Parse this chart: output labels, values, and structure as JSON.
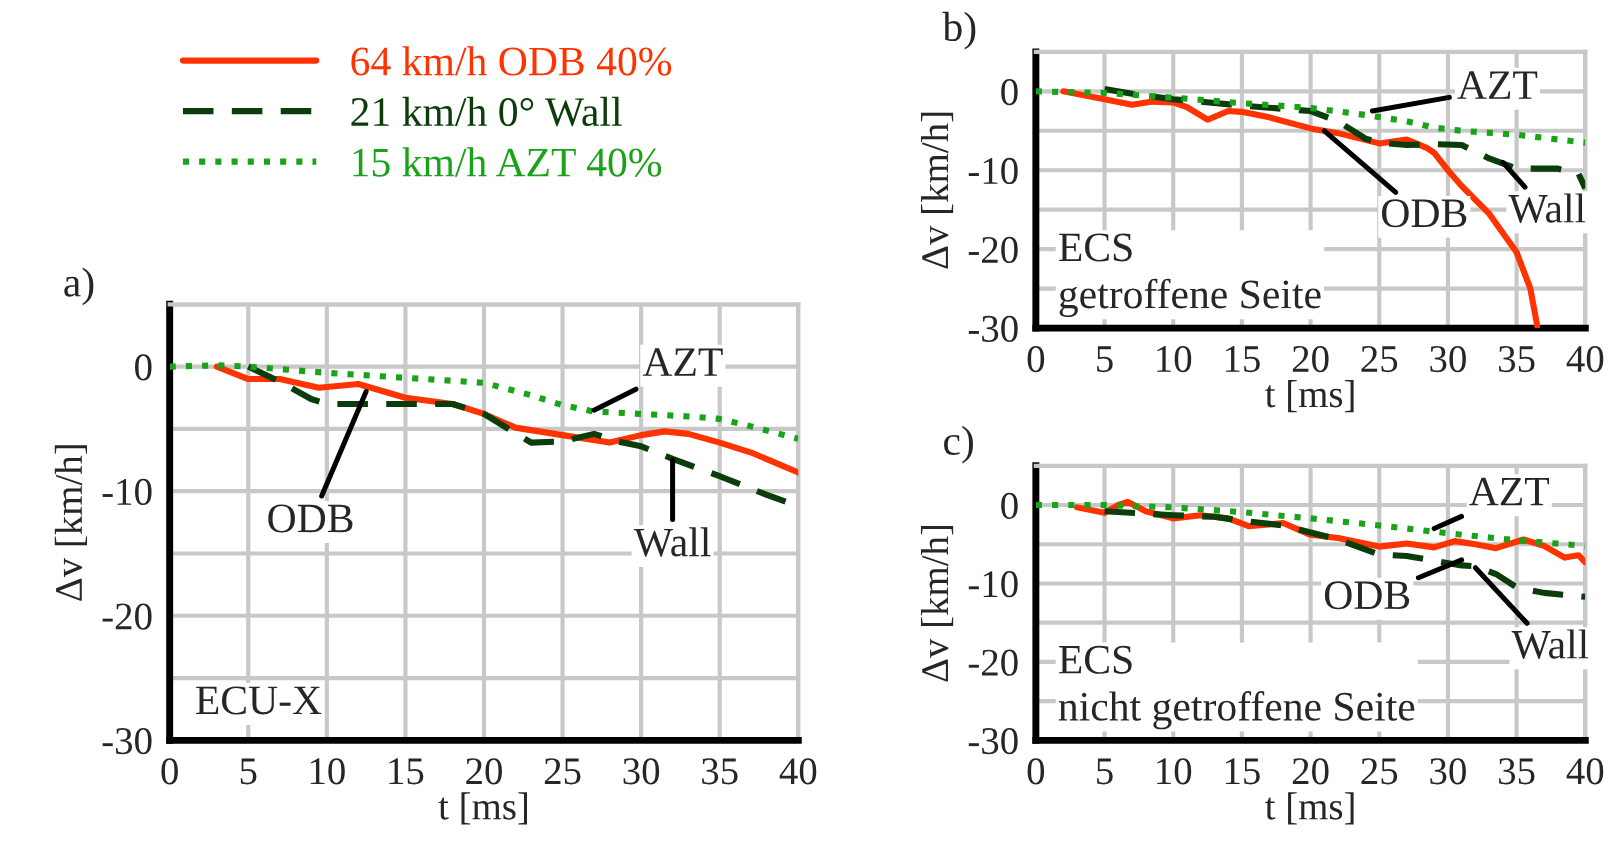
{
  "chart_data": [
    {
      "type": "line",
      "title": "a)",
      "xlabel": "t [ms]",
      "ylabel": "Δv [km/h]",
      "legend": "top left",
      "grid": true,
      "xlim": [
        0,
        40
      ],
      "xticks": [
        0,
        5,
        10,
        15,
        20,
        25,
        30,
        35,
        40
      ],
      "ylim": [
        -30,
        5
      ],
      "yticks": [
        -30,
        {
          "value": -25,
          "label": null
        },
        -20,
        {
          "value": -15,
          "label": null
        },
        -10,
        {
          "value": -5,
          "label": null
        },
        0,
        {
          "value": 5,
          "label": null
        }
      ],
      "series": [
        {
          "name": "64 km/h ODB 40%",
          "color": "#ff3300",
          "line_style": "solid",
          "x": [
            3,
            5,
            7,
            9.5,
            12,
            15,
            18,
            20,
            22,
            25,
            28,
            30,
            31.5,
            33,
            35,
            37,
            40
          ],
          "values": [
            0,
            -1.0,
            -1.0,
            -1.7,
            -1.4,
            -2.5,
            -3.0,
            -3.8,
            -4.9,
            -5.5,
            -6.1,
            -5.5,
            -5.2,
            -5.4,
            -6.1,
            -6.9,
            -8.5
          ]
        },
        {
          "name": "21 km/h 0° Wall",
          "color": "#0a3d0a",
          "line_style": "dashed",
          "x": [
            5,
            7,
            9,
            10,
            15,
            18,
            20,
            23,
            25,
            27,
            28.5,
            30,
            32,
            35,
            38,
            40
          ],
          "values": [
            0,
            -1.2,
            -2.6,
            -3.0,
            -3.0,
            -3.0,
            -3.8,
            -6.1,
            -6.0,
            -5.4,
            -6.0,
            -6.4,
            -7.4,
            -8.8,
            -10.3,
            -11.2
          ]
        },
        {
          "name": "15 km/h AZT 40%",
          "color": "#1aa31a",
          "line_style": "dotted",
          "x": [
            0,
            3,
            5,
            10,
            15,
            20,
            23,
            25,
            27,
            30,
            33,
            35,
            37,
            40
          ],
          "values": [
            0,
            0.1,
            0,
            -0.5,
            -0.9,
            -1.3,
            -2.3,
            -3.1,
            -3.6,
            -3.8,
            -4.0,
            -4.2,
            -4.8,
            -5.8
          ]
        }
      ],
      "annotations": [
        {
          "text": "AZT",
          "x": 27,
          "y": -3.5
        },
        {
          "text": "ODB",
          "x": 12.5,
          "y": -2
        },
        {
          "text": "Wall",
          "x": 32,
          "y": -7.5
        },
        "ECU-X"
      ]
    },
    {
      "type": "line",
      "title": "b)",
      "xlabel": "t [ms]",
      "ylabel": "Δv [km/h]",
      "grid": true,
      "xlim": [
        0,
        40
      ],
      "xticks": [
        0,
        5,
        10,
        15,
        20,
        25,
        30,
        35,
        40
      ],
      "ylim": [
        -30,
        5
      ],
      "yticks": [
        -30,
        {
          "value": -25,
          "label": null
        },
        -20,
        {
          "value": -15,
          "label": null
        },
        -10,
        {
          "value": -5,
          "label": null
        },
        0,
        {
          "value": 5,
          "label": null
        }
      ],
      "series": [
        {
          "color": "#ff3300",
          "line_style": "solid",
          "x": [
            2,
            5,
            7,
            8.5,
            10,
            11,
            12.5,
            14,
            15,
            17,
            20,
            22,
            25,
            27,
            28.5,
            29,
            30,
            31,
            33,
            35,
            36,
            36.5
          ],
          "values": [
            0,
            -1.0,
            -1.7,
            -1.3,
            -1.4,
            -2.0,
            -3.6,
            -2.5,
            -2.6,
            -3.3,
            -4.7,
            -5.3,
            -6.6,
            -6.1,
            -7.2,
            -7.8,
            -10,
            -12,
            -15.5,
            -20.4,
            -25,
            -29.7
          ]
        },
        {
          "color": "#0a3d0a",
          "line_style": "dashed",
          "x": [
            5,
            7,
            10,
            15,
            20,
            22,
            24,
            25,
            27,
            29,
            31,
            33,
            35,
            38,
            39.5,
            40
          ],
          "values": [
            0.3,
            -0.3,
            -1,
            -1.8,
            -2.5,
            -3.8,
            -6,
            -6.5,
            -6.8,
            -6.7,
            -6.8,
            -8.5,
            -9.8,
            -9.8,
            -10.4,
            -12.3
          ]
        },
        {
          "color": "#1aa31a",
          "line_style": "dotted",
          "x": [
            0,
            5,
            10,
            15,
            20,
            24,
            27,
            29,
            31,
            35,
            40
          ],
          "values": [
            0,
            -0.2,
            -0.8,
            -1.5,
            -2.1,
            -3.0,
            -3.8,
            -4.6,
            -5,
            -5.5,
            -6.5
          ]
        }
      ],
      "annotations": [
        {
          "text": "AZT",
          "x": 24.5,
          "y": -2.5
        },
        {
          "text": "ODB",
          "x": 21,
          "y": -5
        },
        {
          "text": "Wall",
          "x": 34,
          "y": -9
        },
        "ECS\ngetroffene Seite"
      ]
    },
    {
      "type": "line",
      "title": "c)",
      "xlabel": "t [ms]",
      "ylabel": "Δv [km/h]",
      "grid": true,
      "xlim": [
        0,
        40
      ],
      "xticks": [
        0,
        5,
        10,
        15,
        20,
        25,
        30,
        35,
        40
      ],
      "ylim": [
        -30,
        5
      ],
      "yticks": [
        -30,
        {
          "value": -25,
          "label": null
        },
        -20,
        {
          "value": -15,
          "label": null
        },
        -10,
        {
          "value": -5,
          "label": null
        },
        0,
        {
          "value": 5,
          "label": null
        }
      ],
      "series": [
        {
          "color": "#ff3300",
          "line_style": "solid",
          "x": [
            3,
            5,
            6,
            6.7,
            8,
            10,
            12,
            14,
            15.5,
            18,
            20,
            22,
            25,
            27,
            29,
            30.5,
            32,
            33.5,
            35.5,
            37,
            38.5,
            39.5,
            40
          ],
          "values": [
            -0.3,
            -1.0,
            0,
            0.4,
            -0.8,
            -1.7,
            -1.3,
            -1.7,
            -2.7,
            -2.3,
            -3.8,
            -4.2,
            -5.3,
            -4.9,
            -5.4,
            -4.6,
            -5.0,
            -5.5,
            -4.4,
            -5.2,
            -6.7,
            -6.4,
            -7.3
          ]
        },
        {
          "color": "#0a3d0a",
          "line_style": "dashed",
          "x": [
            5,
            10,
            13,
            15,
            18,
            20,
            22,
            25,
            27,
            29,
            31,
            32,
            33.5,
            35,
            37,
            40
          ],
          "values": [
            -0.8,
            -1.3,
            -1.5,
            -2.0,
            -2.6,
            -3.5,
            -4.4,
            -6.3,
            -6.5,
            -7.1,
            -7.7,
            -7.8,
            -8.8,
            -10.5,
            -11.2,
            -11.7
          ]
        },
        {
          "color": "#1aa31a",
          "line_style": "dotted",
          "x": [
            0,
            5,
            10,
            15,
            20,
            25,
            30,
            35,
            40
          ],
          "values": [
            0,
            0,
            -0.3,
            -0.9,
            -1.7,
            -2.6,
            -3.6,
            -4.5,
            -5.2
          ]
        }
      ],
      "annotations": [
        {
          "text": "AZT",
          "x": 29,
          "y": -3
        },
        {
          "text": "ODB",
          "x": 31,
          "y": -7
        },
        {
          "text": "Wall",
          "x": 32,
          "y": -8
        },
        "ECS\nnicht getroffene Seite"
      ]
    }
  ]
}
